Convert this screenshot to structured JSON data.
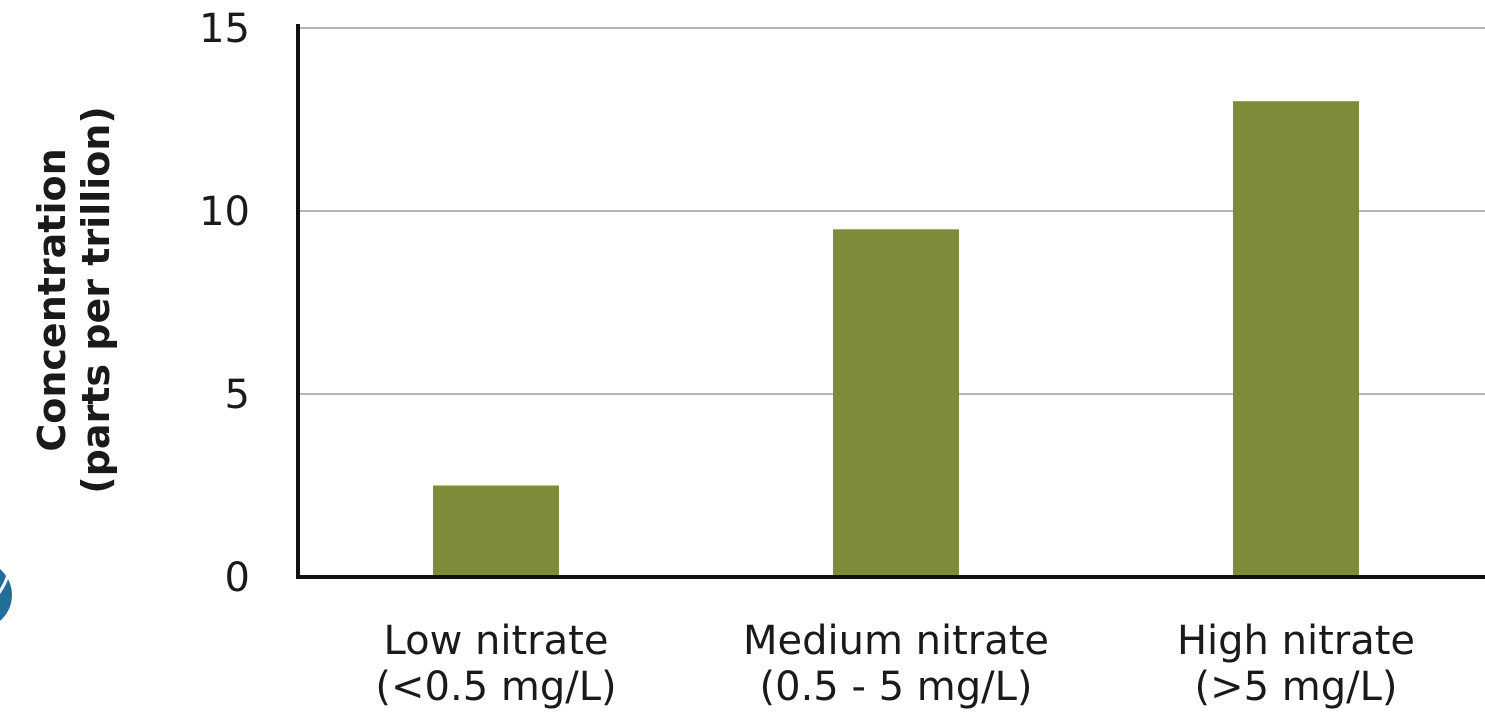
{
  "chart_data": {
    "type": "bar",
    "categories": [
      [
        "Low nitrate",
        "(<0.5 mg/L)"
      ],
      [
        "Medium nitrate",
        "(0.5 - 5 mg/L)"
      ],
      [
        "High nitrate",
        "(>5 mg/L)"
      ]
    ],
    "values": [
      2.5,
      9.5,
      13
    ],
    "ylabel": [
      "Concentration",
      "(parts per trillion)"
    ],
    "ylim": [
      0,
      15
    ],
    "yticks": [
      0,
      5,
      10,
      15
    ],
    "grid": true,
    "bar_color": "#7f8a3a",
    "logo_color": "#1f6f9a"
  }
}
